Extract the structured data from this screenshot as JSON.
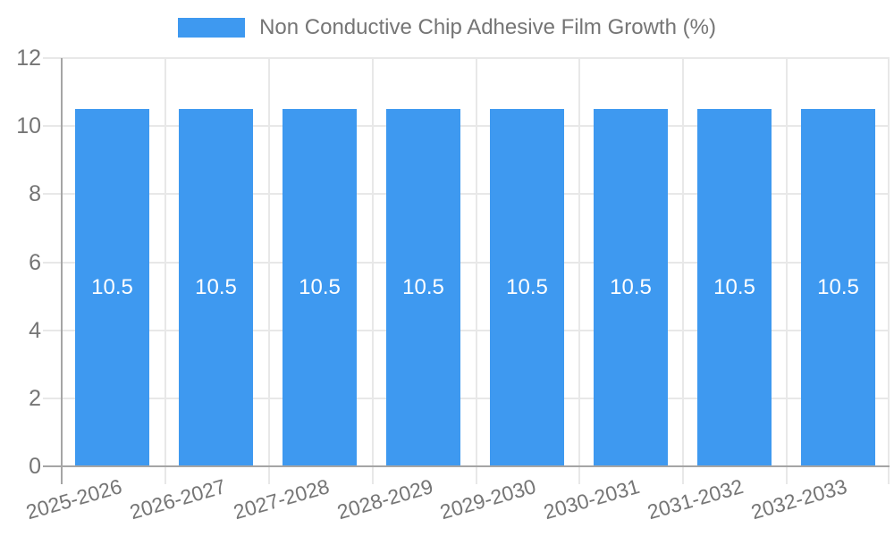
{
  "chart_data": {
    "type": "bar",
    "series_name": "Non Conductive Chip Adhesive Film Growth (%)",
    "categories": [
      "2025-2026",
      "2026-2027",
      "2027-2028",
      "2028-2029",
      "2029-2030",
      "2030-2031",
      "2031-2032",
      "2032-2033"
    ],
    "values": [
      10.5,
      10.5,
      10.5,
      10.5,
      10.5,
      10.5,
      10.5,
      10.5
    ],
    "bar_value_labels": [
      "10.5",
      "10.5",
      "10.5",
      "10.5",
      "10.5",
      "10.5",
      "10.5",
      "10.5"
    ],
    "ylim": [
      0,
      12
    ],
    "yticks": [
      0,
      2,
      4,
      6,
      8,
      10,
      12
    ],
    "grid": true,
    "legend_position": "top-center",
    "colors": {
      "bar": "#3E99F0",
      "value_label": "#FFFFFF",
      "axis_text": "#757575",
      "grid_line": "#E8E8E8",
      "axis_line": "#A5A5A5",
      "background": "#FFFFFF"
    }
  }
}
